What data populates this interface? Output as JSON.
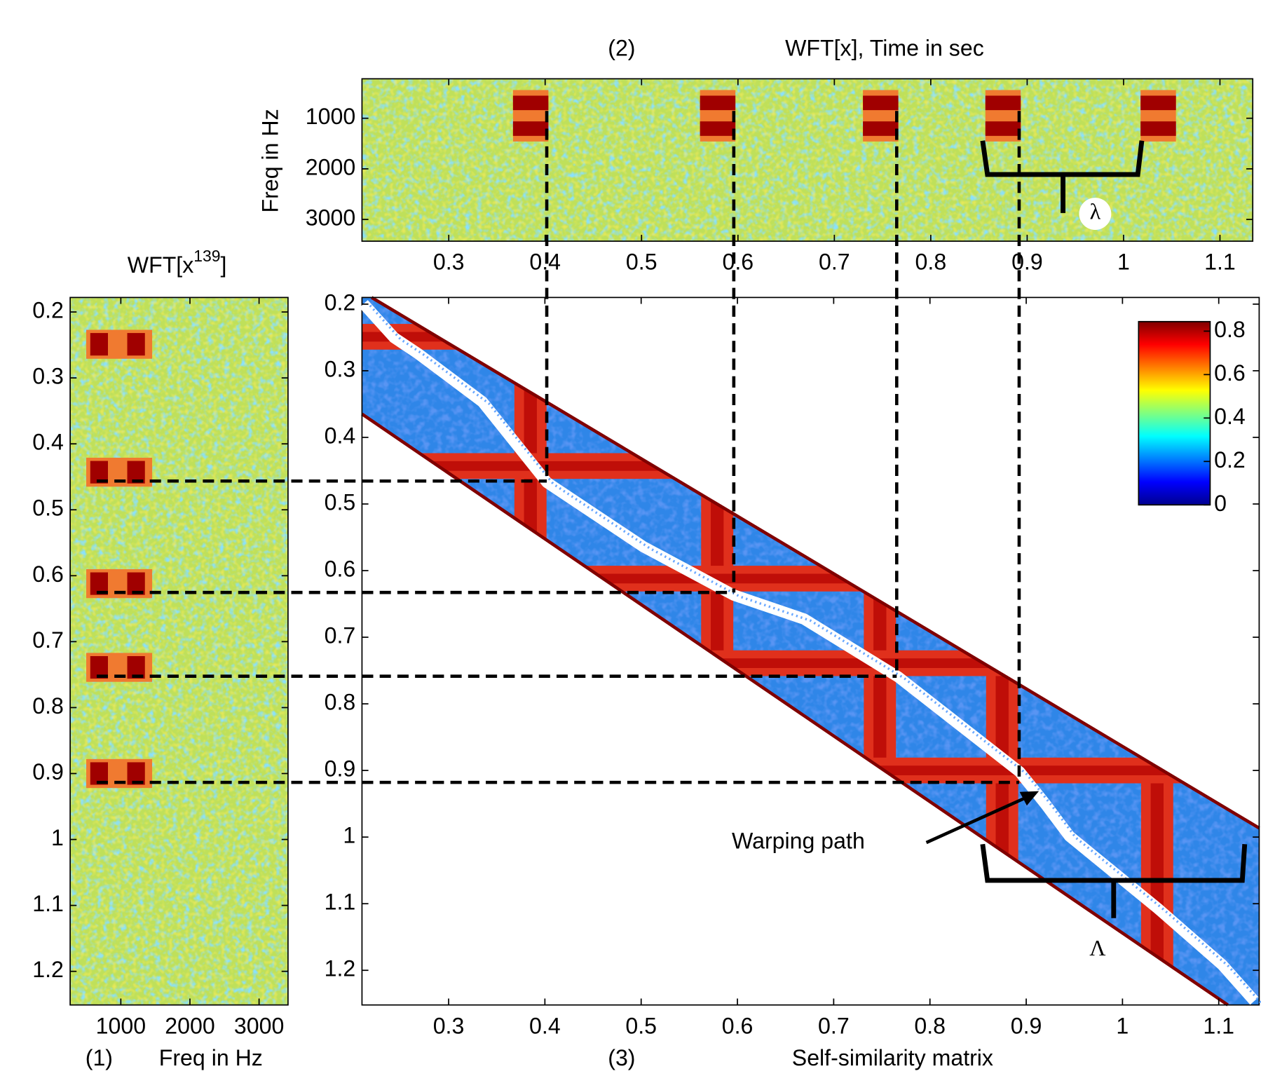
{
  "chart_data": [
    {
      "type": "heatmap",
      "label": "(2)",
      "title": "WFT[x], Time in sec",
      "ylabel": "Freq in Hz",
      "xlim": [
        0.21,
        1.134
      ],
      "ylim": [
        220,
        3430
      ],
      "xticks": [
        0.3,
        0.4,
        0.5,
        0.6,
        0.7,
        0.8,
        0.9,
        1,
        1.1
      ],
      "yticks": [
        1000,
        2000,
        3000
      ],
      "event_times": [
        0.385,
        0.579,
        0.748,
        0.875,
        1.036
      ]
    },
    {
      "type": "heatmap",
      "label": "(1)",
      "title_parts": [
        "WFT[x",
        "139",
        "]"
      ],
      "xlabel": "Freq in Hz",
      "xlim": [
        267,
        3419
      ],
      "ylim": [
        0.178,
        1.251
      ],
      "xticks": [
        1000,
        2000,
        3000
      ],
      "yticks": [
        0.2,
        0.3,
        0.4,
        0.5,
        0.6,
        0.7,
        0.8,
        0.9,
        1,
        1.1,
        1.2
      ],
      "event_times": [
        0.249,
        0.443,
        0.612,
        0.739,
        0.9
      ]
    },
    {
      "type": "heatmap",
      "label": "(3)",
      "xlabel": "Self-similarity matrix",
      "xlim": [
        0.21,
        1.142
      ],
      "ylim": [
        0.19,
        1.252
      ],
      "xticks": [
        0.3,
        0.4,
        0.5,
        0.6,
        0.7,
        0.8,
        0.9,
        1,
        1.1
      ],
      "yticks": [
        0.2,
        0.3,
        0.4,
        0.5,
        0.6,
        0.7,
        0.8,
        0.9,
        1,
        1.1,
        1.2
      ],
      "annotations": [
        "Warping path",
        "λ",
        "Λ"
      ],
      "colorbar": {
        "ylim": [
          0,
          0.844
        ],
        "yticks": [
          0,
          0.2,
          0.4,
          0.6,
          0.8
        ]
      }
    }
  ]
}
